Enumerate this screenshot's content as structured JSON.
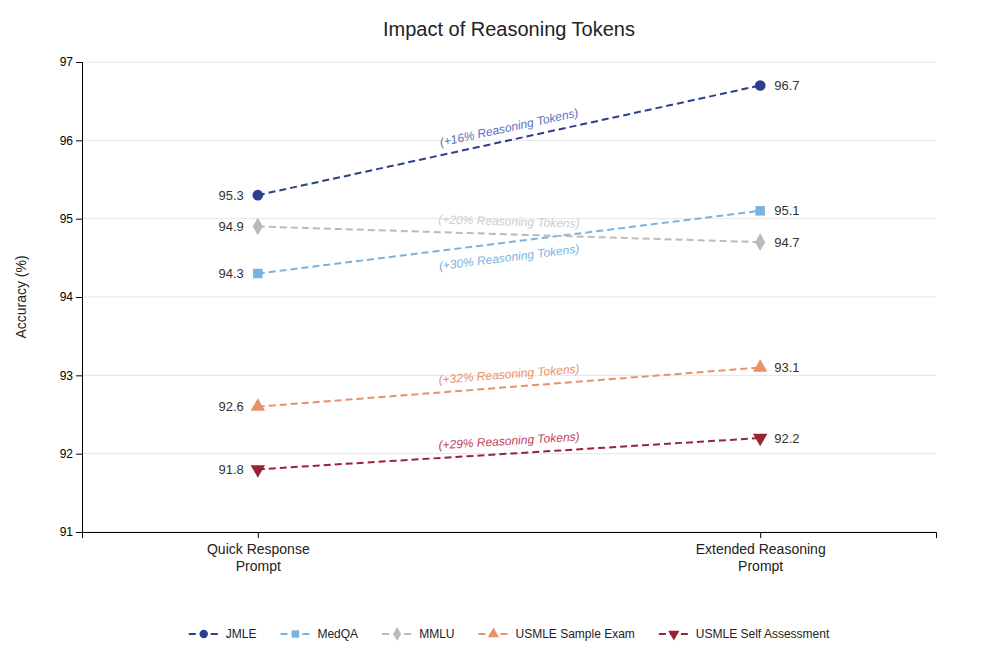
{
  "chart_data": {
    "type": "line",
    "title": "Impact of Reasoning Tokens",
    "categories": [
      "Quick Response\nPrompt",
      "Extended Reasoning\nPrompt"
    ],
    "y_label": "Accuracy (%)",
    "ylim": [
      91,
      97
    ],
    "yticks": [
      91,
      92,
      93,
      94,
      95,
      96,
      97
    ],
    "grid": true,
    "legend": "bottom",
    "data_labels": true,
    "series": [
      {
        "name": "JMLE",
        "color": "#2B3F8C",
        "marker": "circle",
        "line_style": "dashed",
        "values": [
          95.3,
          96.7
        ],
        "annotation": {
          "text": "(+16% Reasoning Tokens)",
          "color": "#5B6FC0"
        }
      },
      {
        "name": "MedQA",
        "color": "#7BB3E0",
        "marker": "square",
        "line_style": "dashed",
        "values": [
          94.3,
          95.1
        ],
        "annotation": {
          "text": "(+30% Reasoning Tokens)",
          "color": "#7BB3E0"
        }
      },
      {
        "name": "MMLU",
        "color": "#BBBBBB",
        "marker": "diamond",
        "line_style": "dashed",
        "values": [
          94.9,
          94.7
        ],
        "annotation": {
          "text": "(+20% Reasoning Tokens)",
          "color": "#CCCCCC"
        }
      },
      {
        "name": "USMLE Sample Exam",
        "color": "#E8926A",
        "marker": "triangle-up",
        "line_style": "dashed",
        "values": [
          92.6,
          93.1
        ],
        "annotation": {
          "text": "(+32% Reasoning Tokens)",
          "color": "#E8926A"
        }
      },
      {
        "name": "USMLE Self Assessment",
        "color": "#9B2335",
        "marker": "triangle-down",
        "line_style": "dashed",
        "values": [
          91.8,
          92.2
        ],
        "annotation": {
          "text": "(+29% Reasoning Tokens)",
          "color": "#C04060"
        }
      }
    ]
  }
}
